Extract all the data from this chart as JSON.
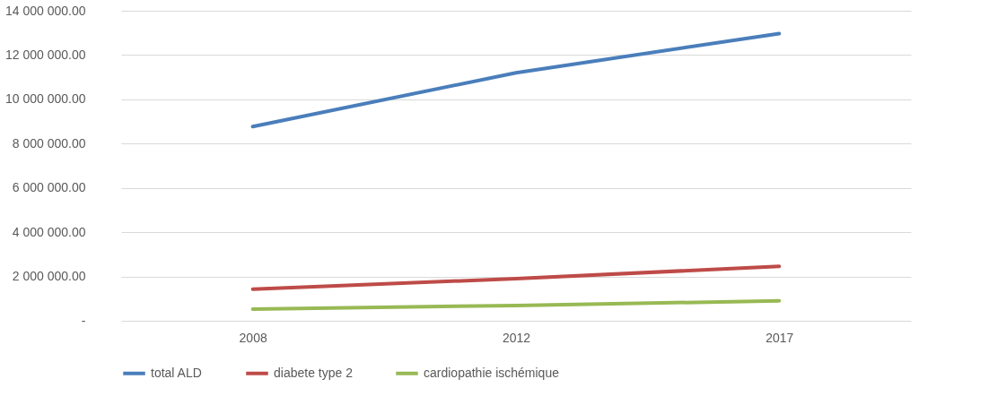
{
  "chart_data": {
    "type": "line",
    "categories": [
      "2008",
      "2012",
      "2017"
    ],
    "series": [
      {
        "name": "total ALD",
        "color": "#4a7ebb",
        "values": [
          8770000,
          11200000,
          12970000
        ]
      },
      {
        "name": "diabete type 2",
        "color": "#be4b48",
        "values": [
          1430000,
          1900000,
          2460000
        ]
      },
      {
        "name": "cardiopathie ischémique",
        "color": "#98b954",
        "values": [
          530000,
          690000,
          900000
        ]
      }
    ],
    "ylim": [
      0,
      14000000
    ],
    "yticks": [
      {
        "value": 0,
        "label": "-"
      },
      {
        "value": 2000000,
        "label": "2 000 000.00"
      },
      {
        "value": 4000000,
        "label": "4 000 000.00"
      },
      {
        "value": 6000000,
        "label": "6 000 000.00"
      },
      {
        "value": 8000000,
        "label": "8 000 000.00"
      },
      {
        "value": 10000000,
        "label": "10 000 000.00"
      },
      {
        "value": 12000000,
        "label": "12 000 000.00"
      },
      {
        "value": 14000000,
        "label": "14 000 000.00"
      }
    ],
    "grid": "y",
    "legend": "bottom",
    "marker": "none",
    "line_style": "solid"
  }
}
